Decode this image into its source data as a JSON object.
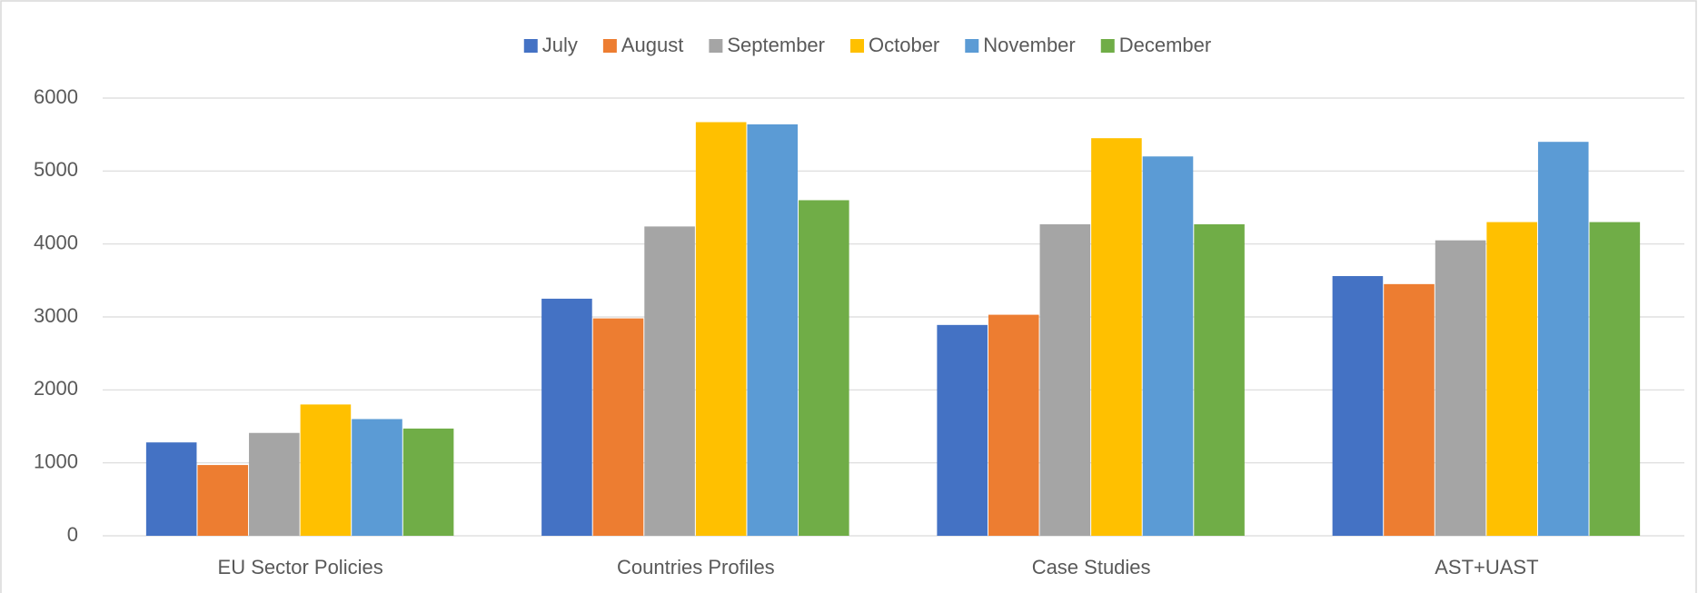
{
  "chart_data": {
    "type": "bar",
    "categories": [
      "EU  Sector Policies",
      "Countries Profiles",
      "Case Studies",
      "AST+UAST"
    ],
    "series": [
      {
        "name": "July",
        "color": "#4472c4",
        "values": [
          1280,
          3250,
          2890,
          3560
        ]
      },
      {
        "name": "August",
        "color": "#ed7d31",
        "values": [
          970,
          2980,
          3030,
          3450
        ]
      },
      {
        "name": "September",
        "color": "#a5a5a5",
        "values": [
          1410,
          4240,
          4270,
          4050
        ]
      },
      {
        "name": "October",
        "color": "#ffc000",
        "values": [
          1800,
          5670,
          5450,
          4300
        ]
      },
      {
        "name": "November",
        "color": "#5b9bd5",
        "values": [
          1600,
          5640,
          5200,
          5400
        ]
      },
      {
        "name": "December",
        "color": "#70ad47",
        "values": [
          1470,
          4600,
          4270,
          4300
        ]
      }
    ],
    "ylim": [
      0,
      6000
    ],
    "yticks": [
      0,
      1000,
      2000,
      3000,
      4000,
      5000,
      6000
    ],
    "grid": true,
    "legend": "top"
  }
}
